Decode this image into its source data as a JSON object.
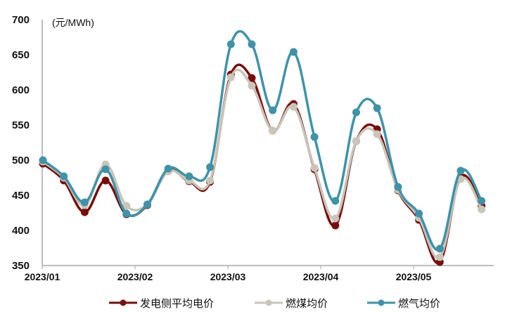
{
  "chart_data": {
    "type": "line",
    "title": "",
    "unit_label": "(元/MWh)",
    "xlabel": "",
    "ylabel": "(元/MWh)",
    "ylim": [
      350,
      700
    ],
    "yticks": [
      350,
      400,
      450,
      500,
      550,
      600,
      650,
      700
    ],
    "xtick_labels": [
      "2023/01",
      "2023/02",
      "2023/03",
      "2023/04",
      "2023/05"
    ],
    "grid": false,
    "legend_position": "bottom",
    "x_index": [
      0,
      1,
      2,
      3,
      4,
      5,
      6,
      7,
      8,
      9,
      10,
      11,
      12,
      13,
      14,
      15,
      16,
      17,
      18,
      19,
      20,
      21
    ],
    "series": [
      {
        "name": "发电侧平均电价",
        "color": "#7a0c0c",
        "values": [
          495,
          471,
          426,
          471,
          423,
          436,
          485,
          470,
          469,
          622,
          617,
          542,
          580,
          487,
          407,
          527,
          544,
          457,
          415,
          355,
          476,
          435
        ]
      },
      {
        "name": "燃煤均价",
        "color": "#c9c5b9",
        "values": [
          498,
          475,
          436,
          494,
          435,
          437,
          484,
          471,
          471,
          618,
          606,
          542,
          576,
          489,
          417,
          527,
          537,
          458,
          418,
          362,
          473,
          430
        ]
      },
      {
        "name": "燃气均价",
        "color": "#3e93a8",
        "values": [
          500,
          477,
          440,
          487,
          424,
          437,
          488,
          477,
          490,
          665,
          665,
          571,
          654,
          533,
          442,
          568,
          574,
          462,
          424,
          374,
          485,
          442
        ]
      }
    ]
  },
  "legend": {
    "items": [
      {
        "label": "发电侧平均电价",
        "color": "#7a0c0c"
      },
      {
        "label": "燃煤均价",
        "color": "#c9c5b9"
      },
      {
        "label": "燃气均价",
        "color": "#3e93a8"
      }
    ]
  }
}
